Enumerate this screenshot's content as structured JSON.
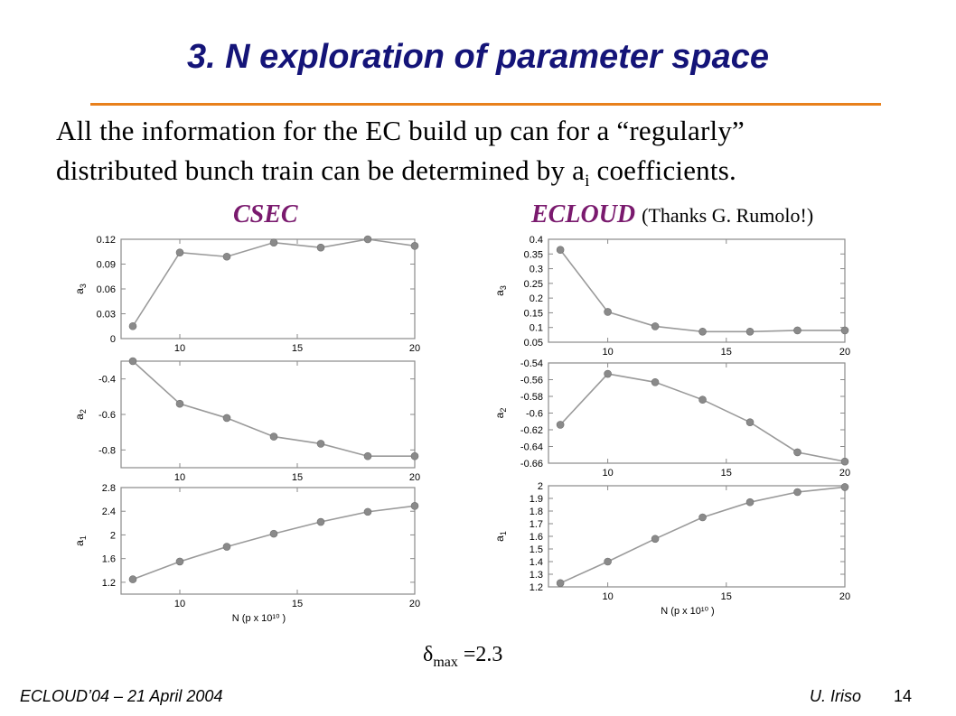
{
  "slide": {
    "title": "3. N exploration of parameter space",
    "body_line1": "All the information for the EC build up can for a “regularly”",
    "body_line2_pre": "distributed bunch train can be determined by a",
    "body_line2_sub": "i",
    "body_line2_post": " coefficients.",
    "left_label": "CSEC",
    "right_label": "ECLOUD",
    "right_label_note": "(Thanks G. Rumolo!)",
    "delta_symbol": "δ",
    "delta_sub": "max",
    "delta_value": "=2.3",
    "footer_left": "ECLOUD’04 – 21 April 2004",
    "footer_author": "U. Iriso",
    "footer_page": "14"
  },
  "colors": {
    "title": "#141478",
    "rule": "#e8801c",
    "labels": "#7a1a6e",
    "series_line": "#9a9a9a",
    "series_marker": "#8a8a8a",
    "frame": "#8a8a8a"
  },
  "chart_data": [
    {
      "id": "csec-a3",
      "type": "line",
      "title": "CSEC",
      "ylabel": "a3",
      "xlabel": "",
      "x": [
        8,
        10,
        12,
        14,
        16,
        18,
        20
      ],
      "values": [
        0.015,
        0.104,
        0.099,
        0.116,
        0.11,
        0.12,
        0.112
      ],
      "xlim": [
        7.5,
        20
      ],
      "ylim": [
        0,
        0.12
      ],
      "yticks": [
        0,
        0.03,
        0.06,
        0.09,
        0.12
      ],
      "ytick_labels": [
        "0",
        "0.03",
        "0.06",
        "0.09",
        "0.12"
      ],
      "xticks": [
        10,
        15,
        20
      ],
      "xtick_labels": [
        "10",
        "15",
        "20"
      ]
    },
    {
      "id": "csec-a2",
      "type": "line",
      "ylabel": "a2",
      "xlabel": "",
      "x": [
        8,
        10,
        12,
        14,
        16,
        18,
        20
      ],
      "values": [
        -0.3,
        -0.54,
        -0.62,
        -0.725,
        -0.765,
        -0.835,
        -0.835
      ],
      "xlim": [
        7.5,
        20
      ],
      "ylim": [
        -0.9,
        -0.3
      ],
      "yticks": [
        -0.4,
        -0.6,
        -0.8
      ],
      "ytick_labels": [
        "-0.4",
        "-0.6",
        "-0.8"
      ],
      "xticks": [
        10,
        15,
        20
      ],
      "xtick_labels": [
        "10",
        "15",
        "20"
      ]
    },
    {
      "id": "csec-a1",
      "type": "line",
      "ylabel": "a1",
      "xlabel": "N (p x 10¹⁰ )",
      "x": [
        8,
        10,
        12,
        14,
        16,
        18,
        20
      ],
      "values": [
        1.25,
        1.55,
        1.8,
        2.02,
        2.22,
        2.39,
        2.49
      ],
      "xlim": [
        7.5,
        20
      ],
      "ylim": [
        1.0,
        2.8
      ],
      "yticks": [
        1.2,
        1.6,
        2.0,
        2.4,
        2.8
      ],
      "ytick_labels": [
        "1.2",
        "1.6",
        "2",
        "2.4",
        "2.8"
      ],
      "xticks": [
        10,
        15,
        20
      ],
      "xtick_labels": [
        "10",
        "15",
        "20"
      ]
    },
    {
      "id": "ecloud-a3",
      "type": "line",
      "title": "ECLOUD",
      "ylabel": "a3",
      "xlabel": "",
      "x": [
        8,
        10,
        12,
        14,
        16,
        18,
        20
      ],
      "values": [
        0.364,
        0.153,
        0.104,
        0.086,
        0.086,
        0.09,
        0.09
      ],
      "xlim": [
        7.5,
        20
      ],
      "ylim": [
        0.05,
        0.4
      ],
      "yticks": [
        0.05,
        0.1,
        0.15,
        0.2,
        0.25,
        0.3,
        0.35,
        0.4
      ],
      "ytick_labels": [
        "0.05",
        "0.1",
        "0.15",
        "0.2",
        "0.25",
        "0.3",
        "0.35",
        "0.4"
      ],
      "xticks": [
        10,
        15,
        20
      ],
      "xtick_labels": [
        "10",
        "15",
        "20"
      ]
    },
    {
      "id": "ecloud-a2",
      "type": "line",
      "ylabel": "a2",
      "xlabel": "",
      "x": [
        8,
        10,
        12,
        14,
        16,
        18,
        20
      ],
      "values": [
        -0.614,
        -0.553,
        -0.563,
        -0.584,
        -0.611,
        -0.647,
        -0.658
      ],
      "xlim": [
        7.5,
        20
      ],
      "ylim": [
        -0.66,
        -0.54
      ],
      "yticks": [
        -0.54,
        -0.56,
        -0.58,
        -0.6,
        -0.62,
        -0.64,
        -0.66
      ],
      "ytick_labels": [
        "-0.54",
        "-0.56",
        "-0.58",
        "-0.6",
        "-0.62",
        "-0.64",
        "-0.66"
      ],
      "xticks": [
        10,
        15,
        20
      ],
      "xtick_labels": [
        "10",
        "15",
        "20"
      ]
    },
    {
      "id": "ecloud-a1",
      "type": "line",
      "ylabel": "a1",
      "xlabel": "N (p x 10¹⁰ )",
      "x": [
        8,
        10,
        12,
        14,
        16,
        18,
        20
      ],
      "values": [
        1.23,
        1.4,
        1.58,
        1.75,
        1.87,
        1.95,
        1.99
      ],
      "xlim": [
        7.5,
        20
      ],
      "ylim": [
        1.2,
        2.0
      ],
      "yticks": [
        1.2,
        1.3,
        1.4,
        1.5,
        1.6,
        1.7,
        1.8,
        1.9,
        2.0
      ],
      "ytick_labels": [
        "1.2",
        "1.3",
        "1.4",
        "1.5",
        "1.6",
        "1.7",
        "1.8",
        "1.9",
        "2"
      ],
      "xticks": [
        10,
        15,
        20
      ],
      "xtick_labels": [
        "10",
        "15",
        "20"
      ]
    }
  ]
}
